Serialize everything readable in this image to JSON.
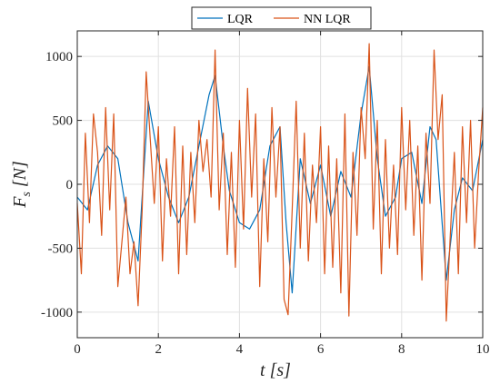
{
  "chart_data": {
    "type": "line",
    "xlabel": "t [s]",
    "ylabel_main": "F",
    "ylabel_sub": "s",
    "ylabel_rest": " [N]",
    "xlim": [
      0,
      10
    ],
    "ylim": [
      -1200,
      1200
    ],
    "xticks": [
      0,
      2,
      4,
      6,
      8,
      10
    ],
    "xtick_labels": [
      "0",
      "2",
      "4",
      "6",
      "8",
      "10"
    ],
    "yticks": [
      -1000,
      -500,
      0,
      500,
      1000
    ],
    "ytick_labels": [
      "-1000",
      "-500",
      "0",
      "500",
      "1000"
    ],
    "grid": true,
    "legend_position": "top-center",
    "series": [
      {
        "name": "LQR",
        "color": "#0072BD",
        "x": [
          0,
          0.25,
          0.5,
          0.75,
          1.0,
          1.25,
          1.5,
          1.75,
          2.0,
          2.25,
          2.5,
          2.75,
          3.0,
          3.25,
          3.4,
          3.6,
          3.75,
          4.0,
          4.25,
          4.5,
          4.75,
          5.0,
          5.15,
          5.3,
          5.5,
          5.75,
          6.0,
          6.25,
          6.5,
          6.75,
          7.0,
          7.2,
          7.4,
          7.6,
          7.85,
          8.0,
          8.25,
          8.5,
          8.7,
          8.85,
          9.1,
          9.3,
          9.5,
          9.75,
          10.0
        ],
        "values": [
          -100,
          -200,
          150,
          300,
          200,
          -300,
          -600,
          650,
          200,
          -100,
          -300,
          -100,
          300,
          700,
          850,
          300,
          -50,
          -300,
          -350,
          -200,
          300,
          450,
          -300,
          -850,
          200,
          -150,
          150,
          -250,
          100,
          -100,
          550,
          920,
          200,
          -250,
          -100,
          200,
          250,
          -150,
          450,
          350,
          -750,
          -200,
          50,
          -50,
          350
        ]
      },
      {
        "name": "NN LQR",
        "color": "#D95319",
        "x": [
          0,
          0.1,
          0.2,
          0.3,
          0.4,
          0.5,
          0.6,
          0.7,
          0.8,
          0.9,
          1.0,
          1.1,
          1.2,
          1.3,
          1.4,
          1.5,
          1.6,
          1.7,
          1.8,
          1.9,
          2.0,
          2.1,
          2.2,
          2.3,
          2.4,
          2.5,
          2.6,
          2.7,
          2.8,
          2.9,
          3.0,
          3.1,
          3.2,
          3.3,
          3.4,
          3.5,
          3.6,
          3.7,
          3.8,
          3.9,
          4.0,
          4.1,
          4.2,
          4.3,
          4.4,
          4.5,
          4.6,
          4.7,
          4.8,
          4.9,
          5.0,
          5.1,
          5.2,
          5.3,
          5.4,
          5.5,
          5.6,
          5.7,
          5.8,
          5.9,
          6.0,
          6.1,
          6.2,
          6.3,
          6.4,
          6.5,
          6.6,
          6.7,
          6.8,
          6.9,
          7.0,
          7.1,
          7.2,
          7.3,
          7.4,
          7.5,
          7.6,
          7.7,
          7.8,
          7.9,
          8.0,
          8.1,
          8.2,
          8.3,
          8.4,
          8.5,
          8.6,
          8.7,
          8.8,
          8.9,
          9.0,
          9.1,
          9.2,
          9.3,
          9.4,
          9.5,
          9.6,
          9.7,
          9.8,
          9.9,
          10.0
        ],
        "values": [
          -150,
          -700,
          400,
          -300,
          550,
          250,
          -400,
          600,
          -200,
          550,
          -800,
          -450,
          -100,
          -700,
          -450,
          -950,
          -200,
          880,
          350,
          -150,
          450,
          -600,
          200,
          -250,
          450,
          -700,
          300,
          -550,
          250,
          -300,
          500,
          100,
          350,
          -100,
          1050,
          -200,
          400,
          -550,
          250,
          -650,
          500,
          -350,
          750,
          -100,
          550,
          -800,
          200,
          -450,
          600,
          -100,
          450,
          -900,
          -1020,
          -200,
          650,
          -500,
          400,
          -600,
          150,
          -300,
          450,
          -700,
          300,
          -650,
          200,
          -850,
          550,
          -1030,
          250,
          -400,
          600,
          200,
          1100,
          -350,
          500,
          -700,
          350,
          -500,
          150,
          -550,
          600,
          -200,
          500,
          -400,
          300,
          -750,
          400,
          -150,
          1050,
          350,
          700,
          -1070,
          -400,
          250,
          -700,
          450,
          -300,
          500,
          -500,
          100,
          600
        ]
      }
    ]
  }
}
